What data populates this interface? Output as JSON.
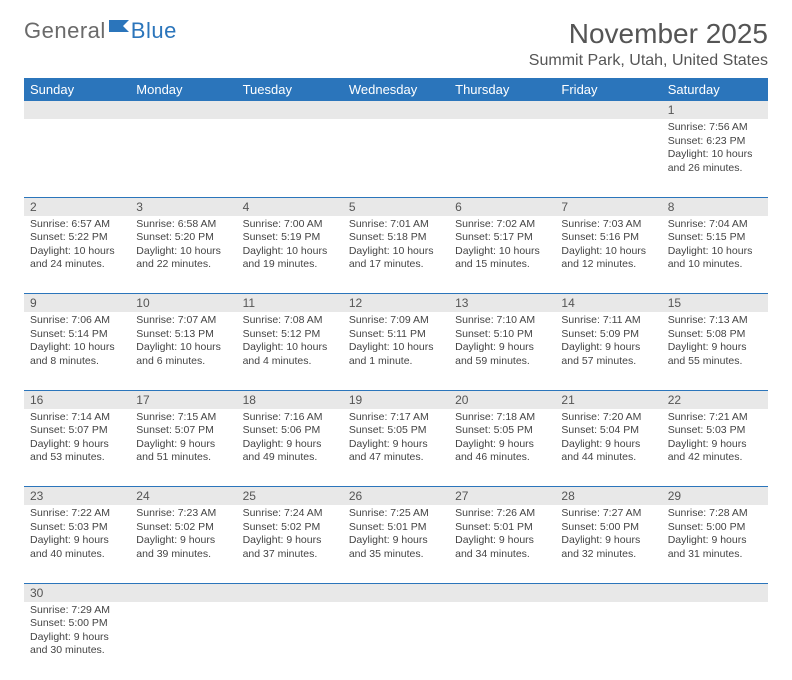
{
  "logo": {
    "text1": "General",
    "text2": "Blue"
  },
  "title": "November 2025",
  "location": "Summit Park, Utah, United States",
  "colors": {
    "header_bg": "#2b75bb",
    "daynum_bg": "#e8e8e8",
    "text": "#444444",
    "title_text": "#555555"
  },
  "weekdays": [
    "Sunday",
    "Monday",
    "Tuesday",
    "Wednesday",
    "Thursday",
    "Friday",
    "Saturday"
  ],
  "weeks": [
    [
      null,
      null,
      null,
      null,
      null,
      null,
      {
        "n": "1",
        "sr": "7:56 AM",
        "ss": "6:23 PM",
        "dl": "10 hours and 26 minutes."
      }
    ],
    [
      {
        "n": "2",
        "sr": "6:57 AM",
        "ss": "5:22 PM",
        "dl": "10 hours and 24 minutes."
      },
      {
        "n": "3",
        "sr": "6:58 AM",
        "ss": "5:20 PM",
        "dl": "10 hours and 22 minutes."
      },
      {
        "n": "4",
        "sr": "7:00 AM",
        "ss": "5:19 PM",
        "dl": "10 hours and 19 minutes."
      },
      {
        "n": "5",
        "sr": "7:01 AM",
        "ss": "5:18 PM",
        "dl": "10 hours and 17 minutes."
      },
      {
        "n": "6",
        "sr": "7:02 AM",
        "ss": "5:17 PM",
        "dl": "10 hours and 15 minutes."
      },
      {
        "n": "7",
        "sr": "7:03 AM",
        "ss": "5:16 PM",
        "dl": "10 hours and 12 minutes."
      },
      {
        "n": "8",
        "sr": "7:04 AM",
        "ss": "5:15 PM",
        "dl": "10 hours and 10 minutes."
      }
    ],
    [
      {
        "n": "9",
        "sr": "7:06 AM",
        "ss": "5:14 PM",
        "dl": "10 hours and 8 minutes."
      },
      {
        "n": "10",
        "sr": "7:07 AM",
        "ss": "5:13 PM",
        "dl": "10 hours and 6 minutes."
      },
      {
        "n": "11",
        "sr": "7:08 AM",
        "ss": "5:12 PM",
        "dl": "10 hours and 4 minutes."
      },
      {
        "n": "12",
        "sr": "7:09 AM",
        "ss": "5:11 PM",
        "dl": "10 hours and 1 minute."
      },
      {
        "n": "13",
        "sr": "7:10 AM",
        "ss": "5:10 PM",
        "dl": "9 hours and 59 minutes."
      },
      {
        "n": "14",
        "sr": "7:11 AM",
        "ss": "5:09 PM",
        "dl": "9 hours and 57 minutes."
      },
      {
        "n": "15",
        "sr": "7:13 AM",
        "ss": "5:08 PM",
        "dl": "9 hours and 55 minutes."
      }
    ],
    [
      {
        "n": "16",
        "sr": "7:14 AM",
        "ss": "5:07 PM",
        "dl": "9 hours and 53 minutes."
      },
      {
        "n": "17",
        "sr": "7:15 AM",
        "ss": "5:07 PM",
        "dl": "9 hours and 51 minutes."
      },
      {
        "n": "18",
        "sr": "7:16 AM",
        "ss": "5:06 PM",
        "dl": "9 hours and 49 minutes."
      },
      {
        "n": "19",
        "sr": "7:17 AM",
        "ss": "5:05 PM",
        "dl": "9 hours and 47 minutes."
      },
      {
        "n": "20",
        "sr": "7:18 AM",
        "ss": "5:05 PM",
        "dl": "9 hours and 46 minutes."
      },
      {
        "n": "21",
        "sr": "7:20 AM",
        "ss": "5:04 PM",
        "dl": "9 hours and 44 minutes."
      },
      {
        "n": "22",
        "sr": "7:21 AM",
        "ss": "5:03 PM",
        "dl": "9 hours and 42 minutes."
      }
    ],
    [
      {
        "n": "23",
        "sr": "7:22 AM",
        "ss": "5:03 PM",
        "dl": "9 hours and 40 minutes."
      },
      {
        "n": "24",
        "sr": "7:23 AM",
        "ss": "5:02 PM",
        "dl": "9 hours and 39 minutes."
      },
      {
        "n": "25",
        "sr": "7:24 AM",
        "ss": "5:02 PM",
        "dl": "9 hours and 37 minutes."
      },
      {
        "n": "26",
        "sr": "7:25 AM",
        "ss": "5:01 PM",
        "dl": "9 hours and 35 minutes."
      },
      {
        "n": "27",
        "sr": "7:26 AM",
        "ss": "5:01 PM",
        "dl": "9 hours and 34 minutes."
      },
      {
        "n": "28",
        "sr": "7:27 AM",
        "ss": "5:00 PM",
        "dl": "9 hours and 32 minutes."
      },
      {
        "n": "29",
        "sr": "7:28 AM",
        "ss": "5:00 PM",
        "dl": "9 hours and 31 minutes."
      }
    ],
    [
      {
        "n": "30",
        "sr": "7:29 AM",
        "ss": "5:00 PM",
        "dl": "9 hours and 30 minutes."
      },
      null,
      null,
      null,
      null,
      null,
      null
    ]
  ],
  "labels": {
    "sunrise": "Sunrise:",
    "sunset": "Sunset:",
    "daylight": "Daylight:"
  }
}
